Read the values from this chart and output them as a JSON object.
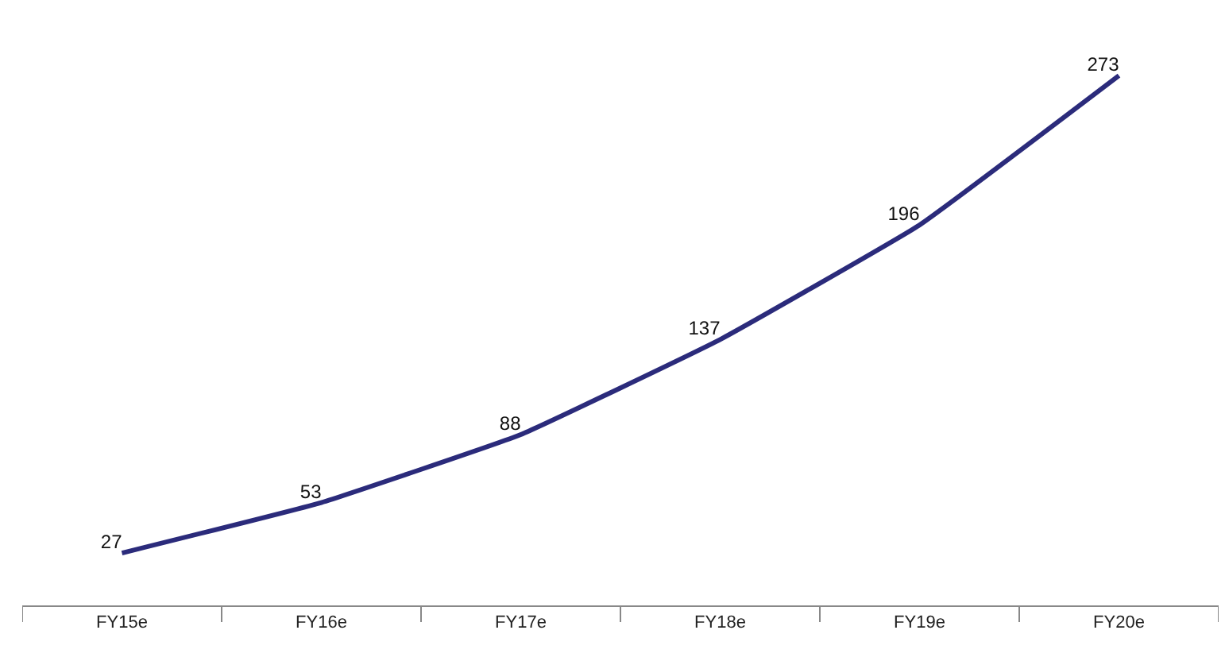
{
  "chart_data": {
    "type": "line",
    "categories": [
      "FY15e",
      "FY16e",
      "FY17e",
      "FY18e",
      "FY19e",
      "FY20e"
    ],
    "series": [
      {
        "color": "#2b2b7b",
        "values": [
          27,
          53,
          88,
          137,
          196,
          273
        ]
      }
    ],
    "data_labels": true,
    "tick_labels": "x",
    "marker": "none",
    "line_style": "solid"
  }
}
